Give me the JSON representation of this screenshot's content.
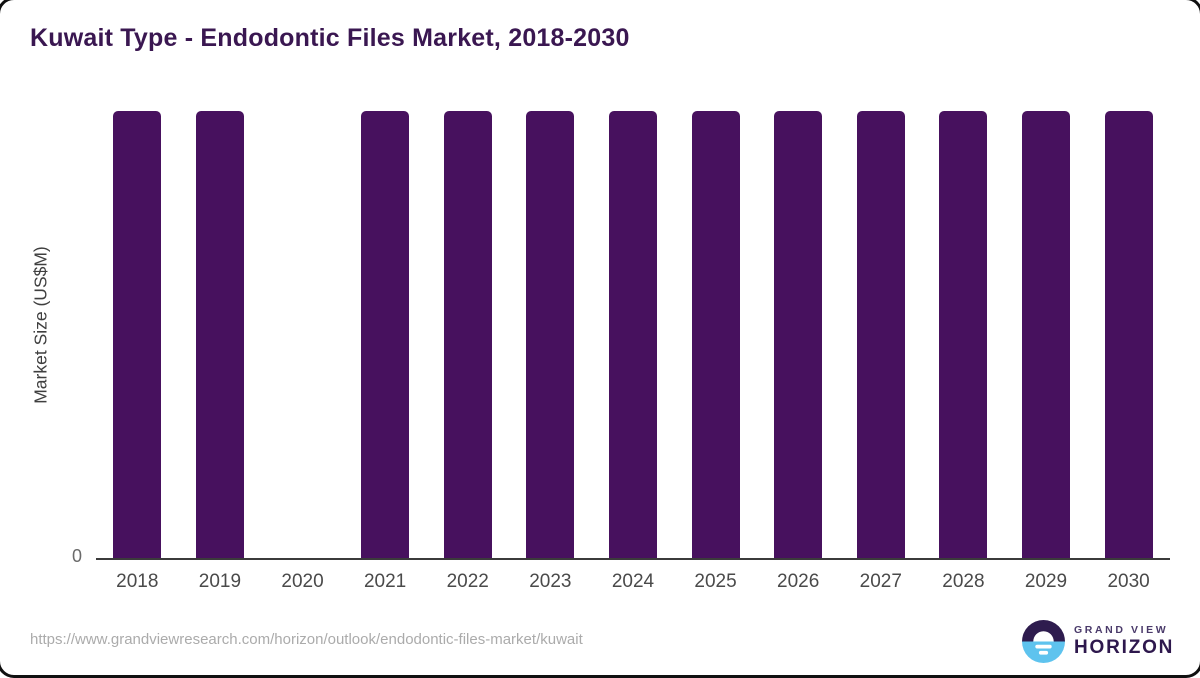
{
  "title": "Kuwait Type - Endodontic Files Market, 2018-2030",
  "chart_data": {
    "type": "bar",
    "title": "Kuwait Type - Endodontic Files Market, 2018-2030",
    "xlabel": "",
    "ylabel": "Market Size (US$M)",
    "y_tick_labels": [
      "0"
    ],
    "categories": [
      "2018",
      "2019",
      "2020",
      "2021",
      "2022",
      "2023",
      "2024",
      "2025",
      "2026",
      "2027",
      "2028",
      "2029",
      "2030"
    ],
    "values_relative_height": [
      1,
      1,
      null,
      1,
      1,
      1,
      1,
      1,
      1,
      1,
      1,
      1,
      1
    ],
    "ymax_relative": 1,
    "bar_color": "#47115e",
    "axis_color": "#3b3b3b",
    "grid": "off",
    "legend": "none"
  },
  "footer": {
    "source_url": "https://www.grandviewresearch.com/horizon/outlook/endodontic-files-market/kuwait",
    "logo": {
      "brand_top": "GRAND VIEW",
      "brand_bottom": "HORIZON",
      "icon": "horizon-sunset-icon",
      "icon_top_color": "#2e1c4e",
      "icon_bottom_color": "#5ec3ee"
    }
  }
}
